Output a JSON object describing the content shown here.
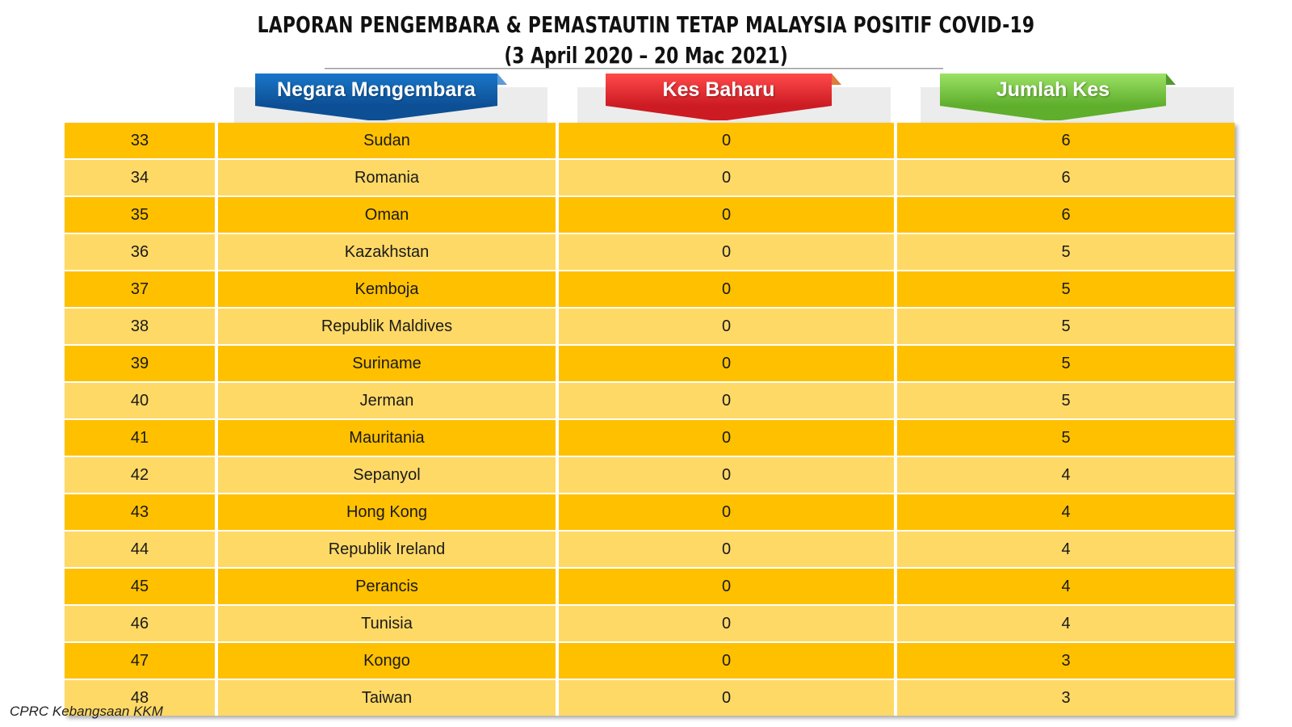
{
  "header": {
    "title": "LAPORAN PENGEMBARA & PEMASTAUTIN TETAP MALAYSIA POSITIF COVID-19",
    "subtitle": "(3 April 2020 – 20 Mac 2021)"
  },
  "columns": {
    "country": "Negara Mengembara",
    "new_cases": "Kes Baharu",
    "total_cases": "Jumlah Kes"
  },
  "colors": {
    "row_dark": "#ffc000",
    "row_light": "#ffd966",
    "header_blue": "#0d4f95",
    "header_red": "#cc1b23",
    "header_green": "#5fae2c"
  },
  "rows": [
    {
      "no": "33",
      "country": "Sudan",
      "new": "0",
      "total": "6"
    },
    {
      "no": "34",
      "country": "Romania",
      "new": "0",
      "total": "6"
    },
    {
      "no": "35",
      "country": "Oman",
      "new": "0",
      "total": "6"
    },
    {
      "no": "36",
      "country": "Kazakhstan",
      "new": "0",
      "total": "5"
    },
    {
      "no": "37",
      "country": "Kemboja",
      "new": "0",
      "total": "5"
    },
    {
      "no": "38",
      "country": "Republik Maldives",
      "new": "0",
      "total": "5"
    },
    {
      "no": "39",
      "country": "Suriname",
      "new": "0",
      "total": "5"
    },
    {
      "no": "40",
      "country": "Jerman",
      "new": "0",
      "total": "5"
    },
    {
      "no": "41",
      "country": "Mauritania",
      "new": "0",
      "total": "5"
    },
    {
      "no": "42",
      "country": "Sepanyol",
      "new": "0",
      "total": "4"
    },
    {
      "no": "43",
      "country": "Hong Kong",
      "new": "0",
      "total": "4"
    },
    {
      "no": "44",
      "country": "Republik Ireland",
      "new": "0",
      "total": "4"
    },
    {
      "no": "45",
      "country": "Perancis",
      "new": "0",
      "total": "4"
    },
    {
      "no": "46",
      "country": "Tunisia",
      "new": "0",
      "total": "4"
    },
    {
      "no": "47",
      "country": "Kongo",
      "new": "0",
      "total": "3"
    },
    {
      "no": "48",
      "country": "Taiwan",
      "new": "0",
      "total": "3"
    }
  ],
  "footer": {
    "source": "CPRC Kebangsaan KKM"
  }
}
